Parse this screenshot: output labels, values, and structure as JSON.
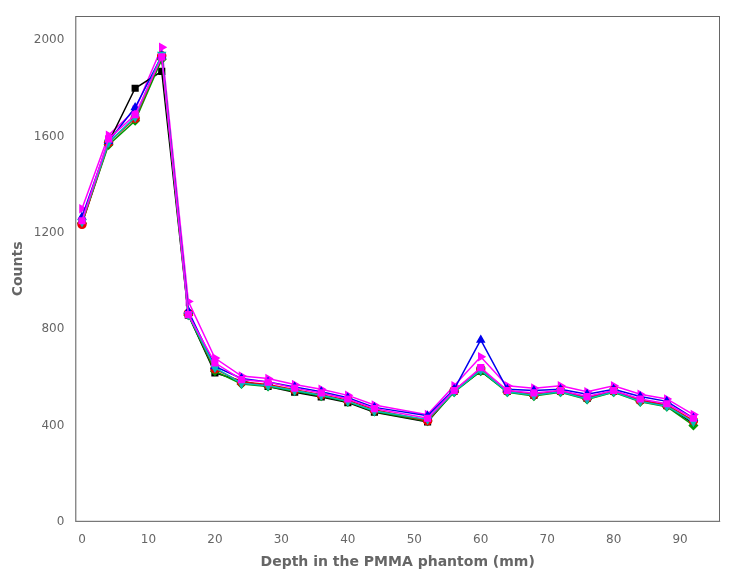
{
  "chart_data": {
    "type": "line",
    "xlabel": "Depth in the PMMA phantom (mm)",
    "ylabel": "Counts",
    "x": [
      0,
      4,
      8,
      12,
      16,
      20,
      24,
      28,
      32,
      36,
      40,
      44,
      52,
      56,
      60,
      64,
      68,
      72,
      76,
      80,
      84,
      88,
      92
    ],
    "xlim": [
      -1,
      96
    ],
    "ylim": [
      0,
      2100
    ],
    "xticks": [
      0,
      10,
      20,
      30,
      40,
      50,
      60,
      70,
      80,
      90
    ],
    "yticks": [
      0,
      400,
      800,
      1200,
      1600,
      2000
    ],
    "grid": false,
    "series": [
      {
        "color": "#FF00FF",
        "marker": "square",
        "line_style": "solid",
        "values": [
          1250,
          1590,
          1690,
          1930,
          860,
          660,
          590,
          580,
          555,
          535,
          510,
          470,
          430,
          545,
          640,
          545,
          535,
          545,
          520,
          545,
          510,
          490,
          430
        ]
      },
      {
        "color": "#00BBBB",
        "marker": "triangle_down",
        "line_style": "solid",
        "values": [
          1245,
          1575,
          1680,
          1940,
          860,
          640,
          575,
          565,
          545,
          525,
          500,
          460,
          425,
          540,
          630,
          540,
          525,
          540,
          510,
          540,
          500,
          480,
          415
        ]
      },
      {
        "color": "#0000EE",
        "marker": "triangle_up",
        "line_style": "solid",
        "values": [
          1265,
          1580,
          1720,
          1935,
          875,
          645,
          595,
          580,
          560,
          540,
          515,
          475,
          440,
          550,
          755,
          550,
          545,
          550,
          530,
          550,
          520,
          500,
          430
        ]
      },
      {
        "color": "#EE0000",
        "marker": "circle",
        "line_style": "solid",
        "values": [
          1235,
          1575,
          1675,
          1935,
          865,
          635,
          580,
          570,
          548,
          528,
          505,
          465,
          420,
          545,
          635,
          545,
          528,
          545,
          515,
          545,
          505,
          485,
          420
        ]
      },
      {
        "color": "#009900",
        "marker": "diamond",
        "line_style": "solid",
        "values": [
          1240,
          1565,
          1665,
          1920,
          858,
          625,
          572,
          562,
          542,
          522,
          498,
          458,
          418,
          538,
          625,
          538,
          522,
          538,
          508,
          538,
          498,
          478,
          400
        ]
      },
      {
        "color": "#000000",
        "marker": "square",
        "line_style": "solid",
        "values": [
          1240,
          1575,
          1800,
          1870,
          858,
          618,
          585,
          562,
          538,
          518,
          495,
          455,
          415,
          542,
          625,
          542,
          525,
          542,
          512,
          542,
          505,
          482,
          408
        ]
      },
      {
        "color": "#FF00FF",
        "marker": "triangle_right",
        "line_style": "solid",
        "values": [
          1300,
          1605,
          1710,
          1970,
          915,
          680,
          605,
          595,
          570,
          550,
          525,
          485,
          445,
          565,
          685,
          565,
          555,
          565,
          540,
          565,
          530,
          510,
          445
        ]
      }
    ]
  }
}
